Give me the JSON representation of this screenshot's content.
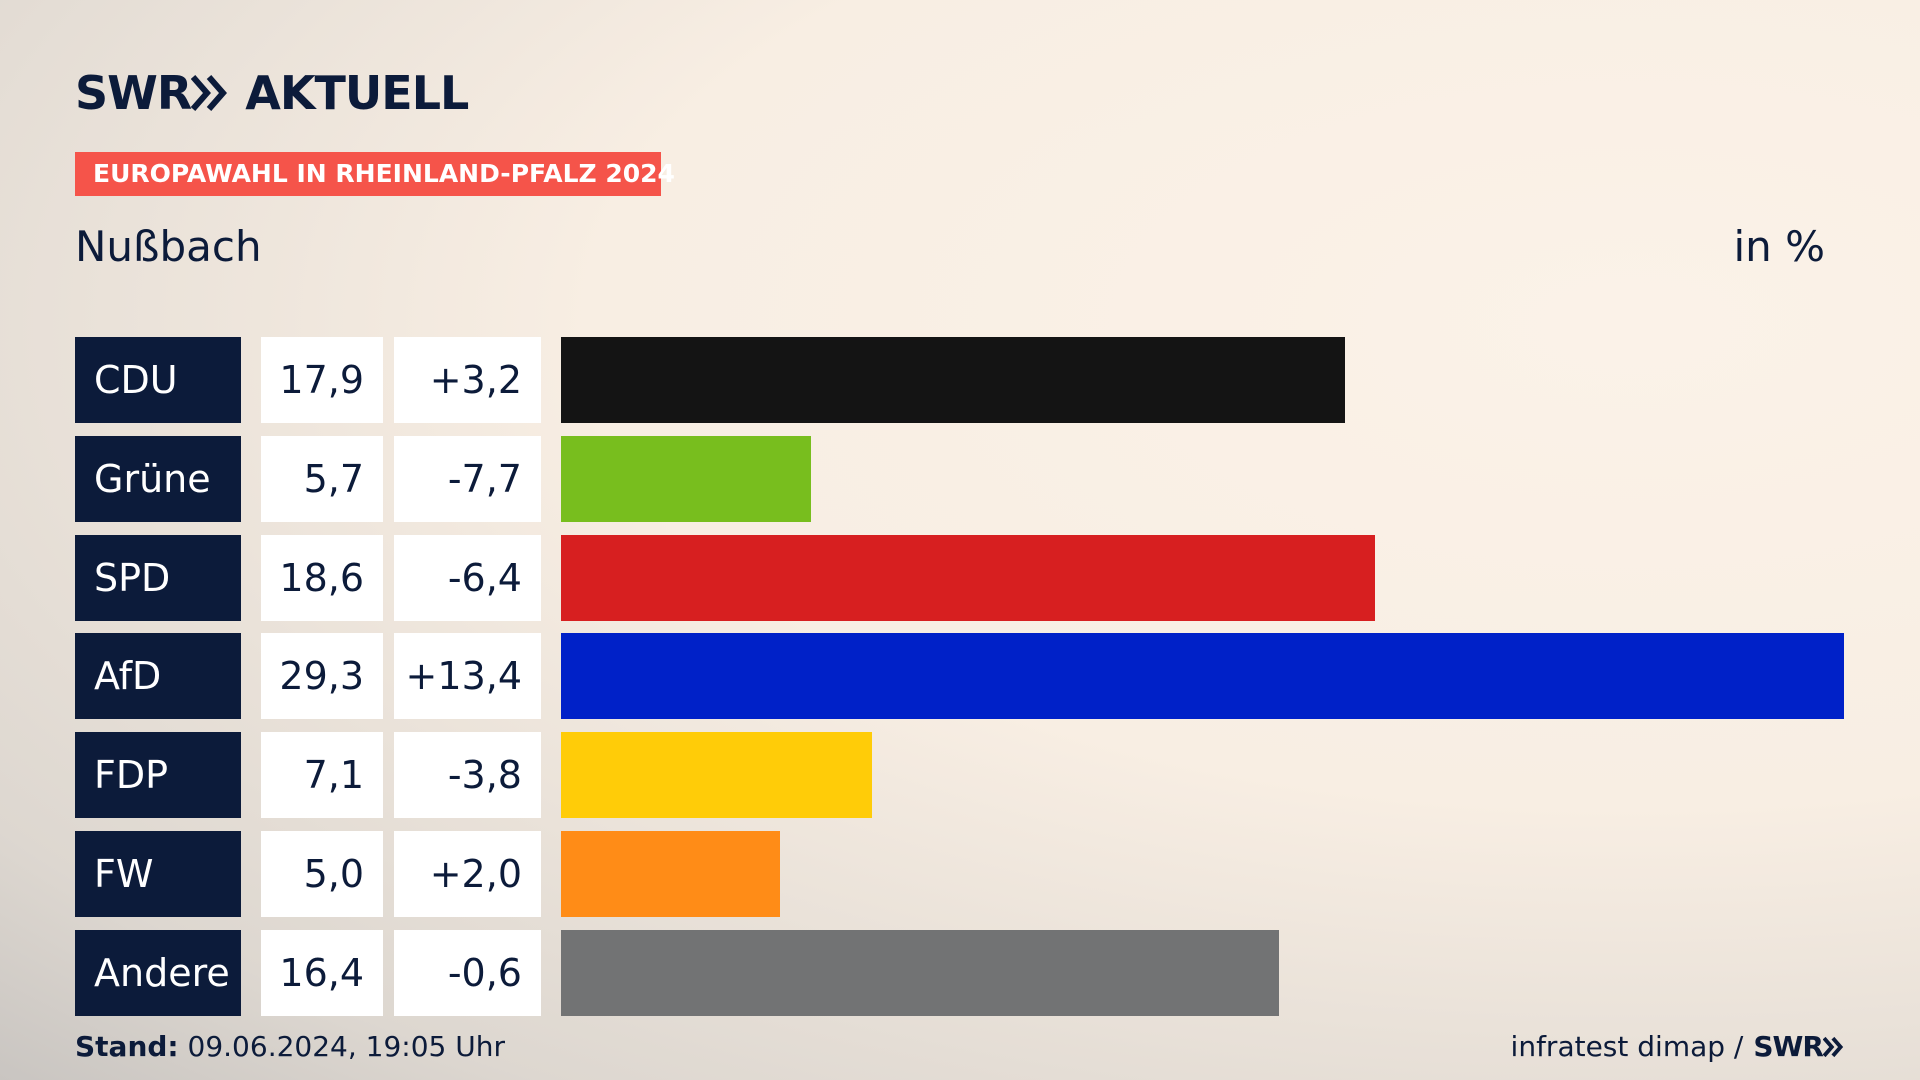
{
  "brand": {
    "name": "SWR",
    "product": "AKTUELL"
  },
  "chart_data": {
    "type": "bar",
    "kicker": "EUROPAWAHL IN RHEINLAND-PFALZ 2024",
    "title": "Nußbach",
    "unit": "in %",
    "categories": [
      "CDU",
      "Grüne",
      "SPD",
      "AfD",
      "FDP",
      "FW",
      "Andere"
    ],
    "values": [
      17.9,
      5.7,
      18.6,
      29.3,
      7.1,
      5.0,
      16.4
    ],
    "value_labels": [
      "17,9",
      "5,7",
      "18,6",
      "29,3",
      "7,1",
      "5,0",
      "16,4"
    ],
    "changes": [
      3.2,
      -7.7,
      -6.4,
      13.4,
      -3.8,
      2.0,
      -0.6
    ],
    "change_labels": [
      "+3,2",
      "-7,7",
      "-6,4",
      "+13,4",
      "-3,8",
      "+2,0",
      "-0,6"
    ],
    "colors": [
      "#141414",
      "#78be1e",
      "#d71f20",
      "#0021c8",
      "#ffcc08",
      "#ff8c17",
      "#727374"
    ]
  },
  "footer": {
    "label": "Stand:",
    "timestamp": "09.06.2024, 19:05 Uhr",
    "source": "infratest dimap /",
    "source_brand": "SWR"
  }
}
